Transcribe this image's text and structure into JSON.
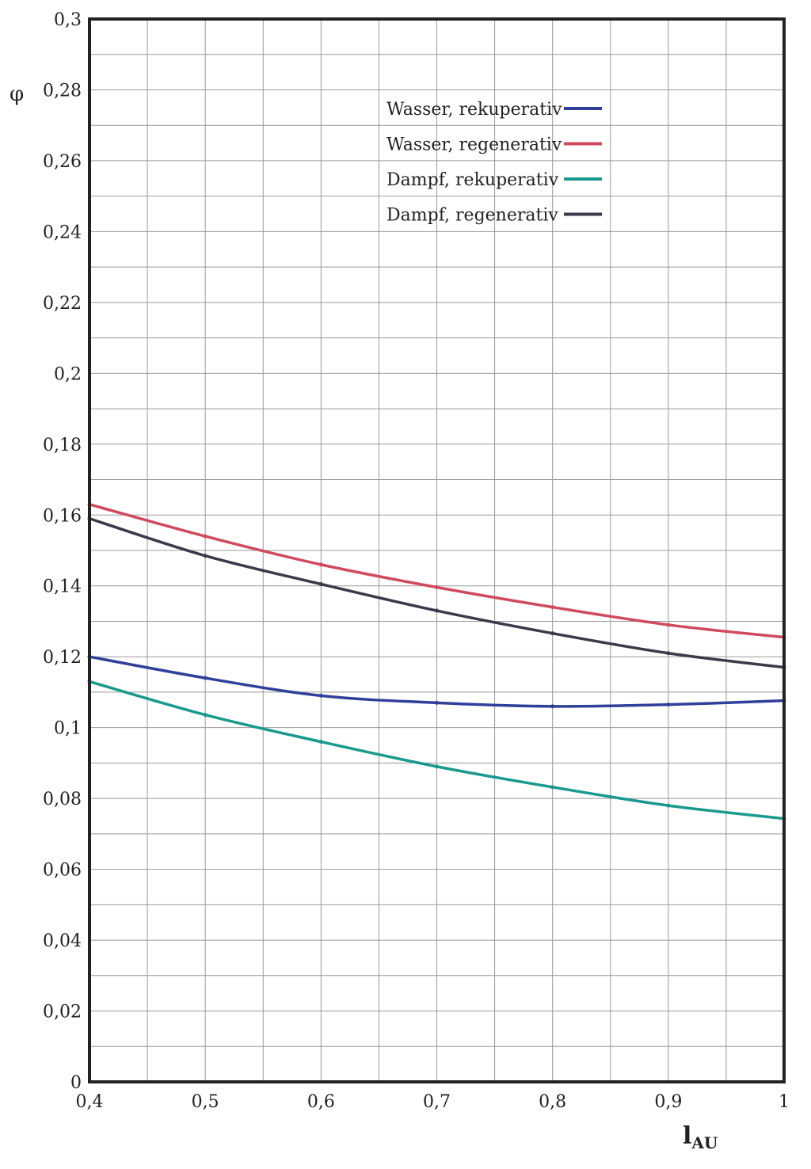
{
  "chart_data": {
    "type": "line",
    "title": "",
    "xlabel": "l",
    "xlabel_sub": "AU",
    "ylabel": "φ",
    "xlim": [
      0.4,
      1.0
    ],
    "ylim": [
      0,
      0.3
    ],
    "grid": true,
    "legend_placement": "top-center",
    "x_ticks": [
      0.4,
      0.5,
      0.6,
      0.7,
      0.8,
      0.9,
      1.0
    ],
    "x_tick_labels": [
      "0,4",
      "0,5",
      "0,6",
      "0,7",
      "0,8",
      "0,9",
      "1"
    ],
    "y_ticks": [
      0,
      0.02,
      0.04,
      0.06,
      0.08,
      0.1,
      0.12,
      0.14,
      0.16,
      0.18,
      0.2,
      0.22,
      0.24,
      0.26,
      0.28,
      0.3
    ],
    "y_tick_labels": [
      "0",
      "0,02",
      "0,04",
      "0,06",
      "0,08",
      "0,1",
      "0,12",
      "0,14",
      "0,16",
      "0,18",
      "0,2",
      "0,22",
      "0,24",
      "0,26",
      "0,28",
      "0,3"
    ],
    "x": [
      0.4,
      0.5,
      0.6,
      0.7,
      0.8,
      0.9,
      1.0
    ],
    "series": [
      {
        "name": "Wasser, rekuperativ",
        "color": "#2f3f9a",
        "values": [
          0.12,
          0.114,
          0.109,
          0.107,
          0.106,
          0.1065,
          0.1076
        ]
      },
      {
        "name": "Wasser, regenerativ",
        "color": "#d04a5f",
        "values": [
          0.163,
          0.154,
          0.146,
          0.1396,
          0.134,
          0.129,
          0.1255
        ]
      },
      {
        "name": "Dampf, rekuperativ",
        "color": "#1a9a8c",
        "values": [
          0.113,
          0.1036,
          0.096,
          0.089,
          0.0832,
          0.078,
          0.0743
        ]
      },
      {
        "name": "Dampf, regenerativ",
        "color": "#3a3a4a",
        "values": [
          0.159,
          0.1485,
          0.1405,
          0.133,
          0.1266,
          0.121,
          0.117
        ]
      }
    ]
  }
}
